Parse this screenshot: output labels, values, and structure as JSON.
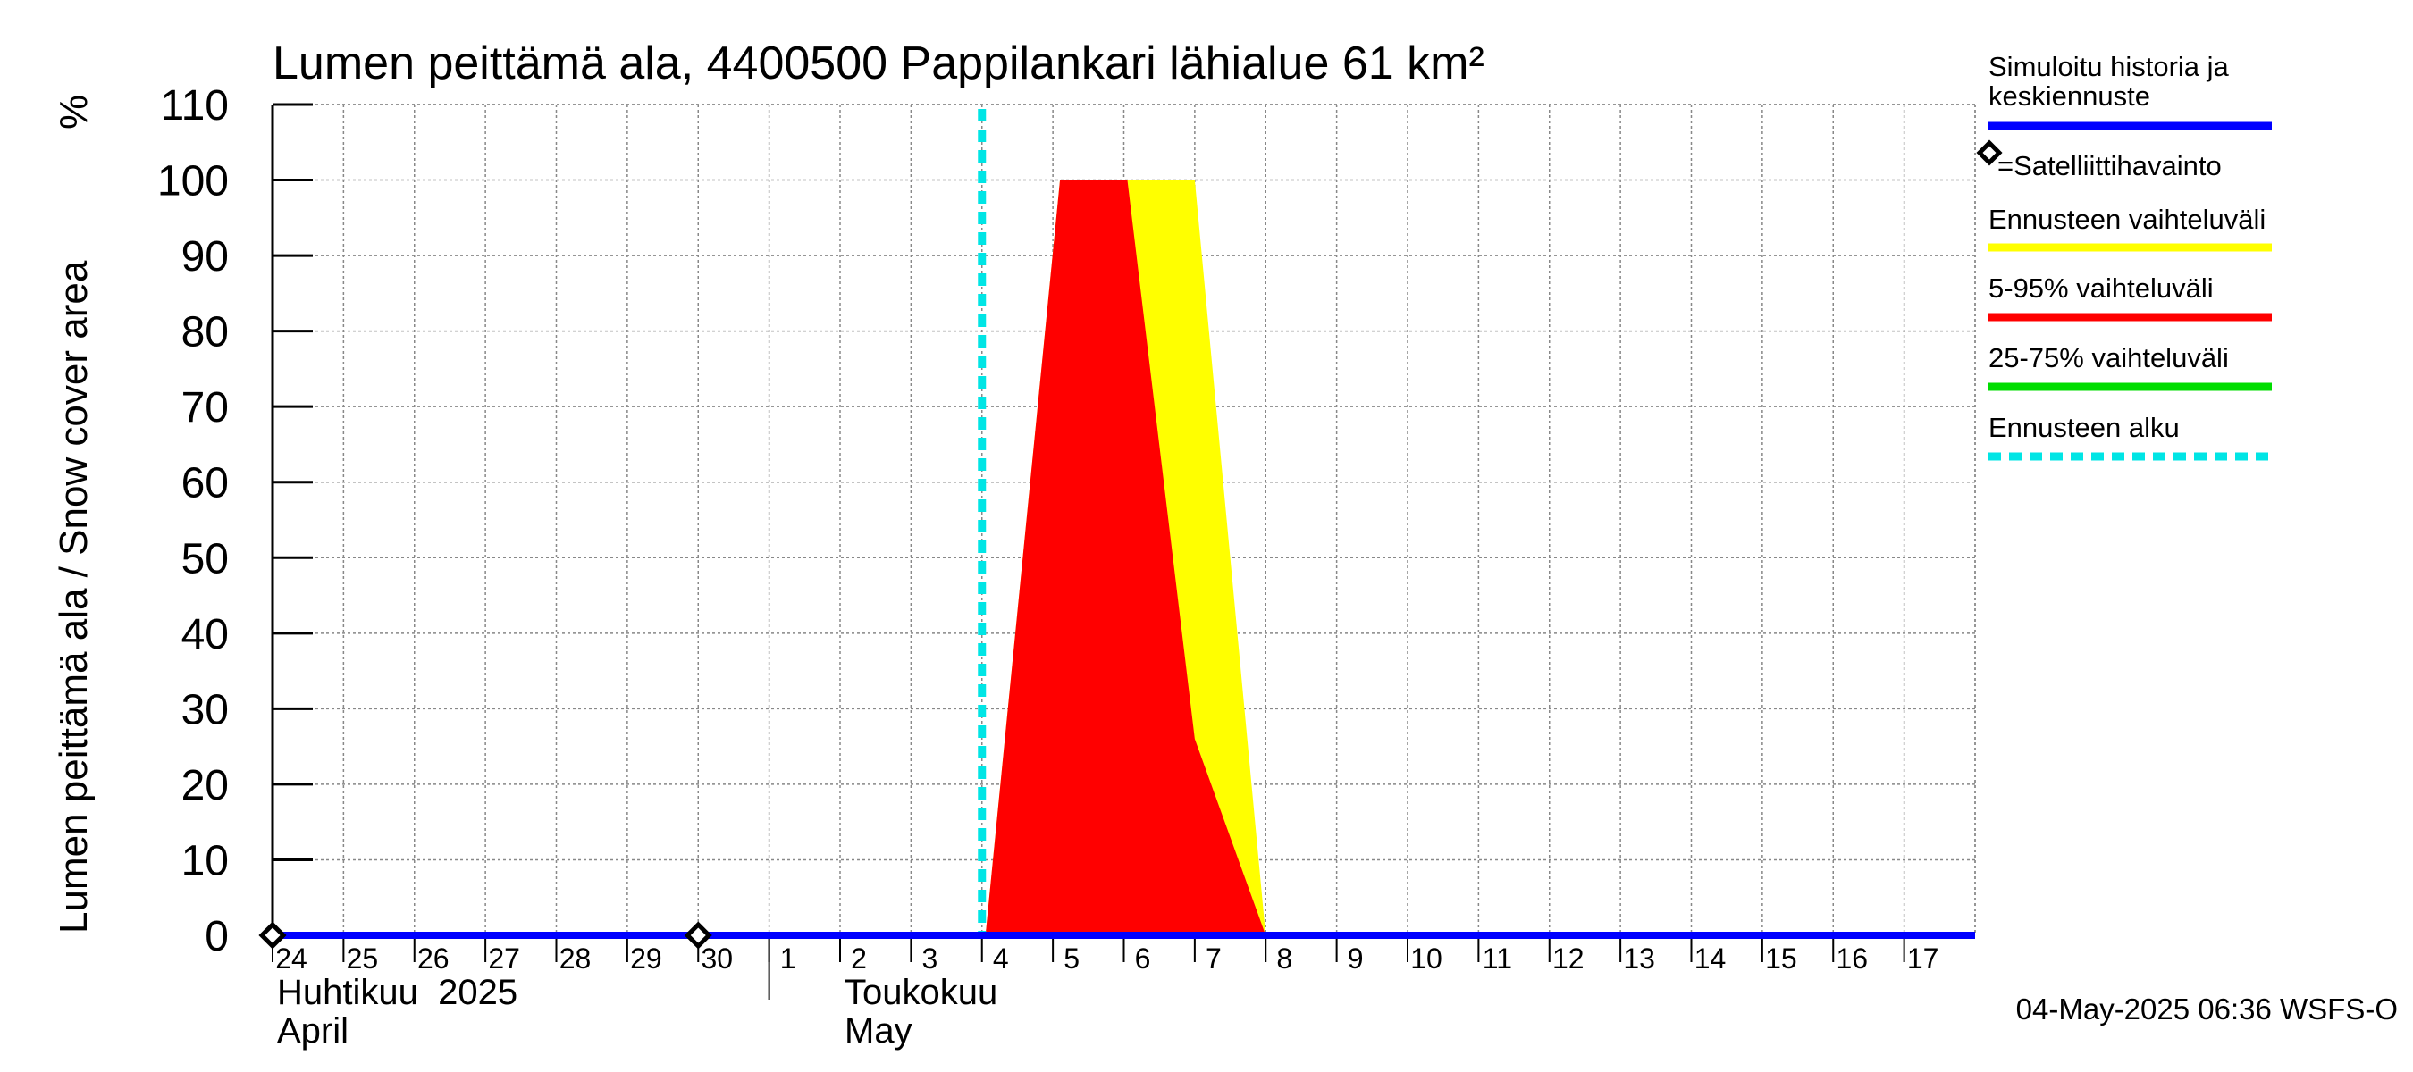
{
  "chart_data": {
    "type": "area",
    "title": "Lumen peittämä ala, 4400500 Pappilankari lähialue 61 km²",
    "ylabel": "Lumen peittämä ala / Snow cover area",
    "yunit": "%",
    "ylim": [
      0,
      110
    ],
    "yticks": [
      0,
      10,
      20,
      30,
      40,
      50,
      60,
      70,
      80,
      90,
      100,
      110
    ],
    "xlim": [
      0,
      24
    ],
    "day_labels": [
      "24",
      "25",
      "26",
      "27",
      "28",
      "29",
      "30",
      "1",
      "2",
      "3",
      "4",
      "5",
      "6",
      "7",
      "8",
      "9",
      "10",
      "11",
      "12",
      "13",
      "14",
      "15",
      "16",
      "17"
    ],
    "month_labels": [
      {
        "line1": "Huhtikuu  2025",
        "line2": "April",
        "day_index": 0
      },
      {
        "line1": "Toukokuu",
        "line2": "May",
        "day_index": 8
      }
    ],
    "month_boundary_day_index": 7,
    "grid": true,
    "forecast_start_x": 10.0,
    "series": [
      {
        "name": "Ennusteen vaihteluväli",
        "color": "#ffff00",
        "upper": [
          [
            0,
            0
          ],
          [
            10.05,
            0
          ],
          [
            11.1,
            100
          ],
          [
            13.0,
            100
          ],
          [
            14.0,
            0
          ],
          [
            24,
            0
          ]
        ],
        "lower": [
          [
            0,
            0
          ],
          [
            24,
            0
          ]
        ]
      },
      {
        "name": "5-95% vaihteluväli",
        "color": "#ff0000",
        "upper": [
          [
            0,
            0
          ],
          [
            10.05,
            0
          ],
          [
            11.1,
            100
          ],
          [
            12.05,
            100
          ],
          [
            13.0,
            26
          ],
          [
            14.0,
            0
          ],
          [
            24,
            0
          ]
        ],
        "lower": [
          [
            0,
            0
          ],
          [
            24,
            0
          ]
        ]
      },
      {
        "name": "Simuloitu historia ja keskiennuste",
        "color": "#0000ff",
        "values": [
          [
            0,
            0
          ],
          [
            24,
            0
          ]
        ]
      }
    ],
    "satellite_observations": [
      [
        0,
        0
      ],
      [
        6,
        0
      ]
    ],
    "legend": [
      {
        "label": "Simuloitu historia ja keskiennuste",
        "color": "#0000ff",
        "style": "line"
      },
      {
        "label": "=Satelliittihavainto",
        "color": "#000000",
        "style": "diamond"
      },
      {
        "label": "Ennusteen vaihteluväli",
        "color": "#ffff00",
        "style": "line"
      },
      {
        "label": "5-95% vaihteluväli",
        "color": "#ff0000",
        "style": "line"
      },
      {
        "label": "25-75% vaihteluväli",
        "color": "#00dd00",
        "style": "line"
      },
      {
        "label": "Ennusteen alku",
        "color": "#00e5e5",
        "style": "dashed"
      }
    ],
    "legend_position": "right",
    "footer": "04-May-2025 06:36 WSFS-O"
  }
}
